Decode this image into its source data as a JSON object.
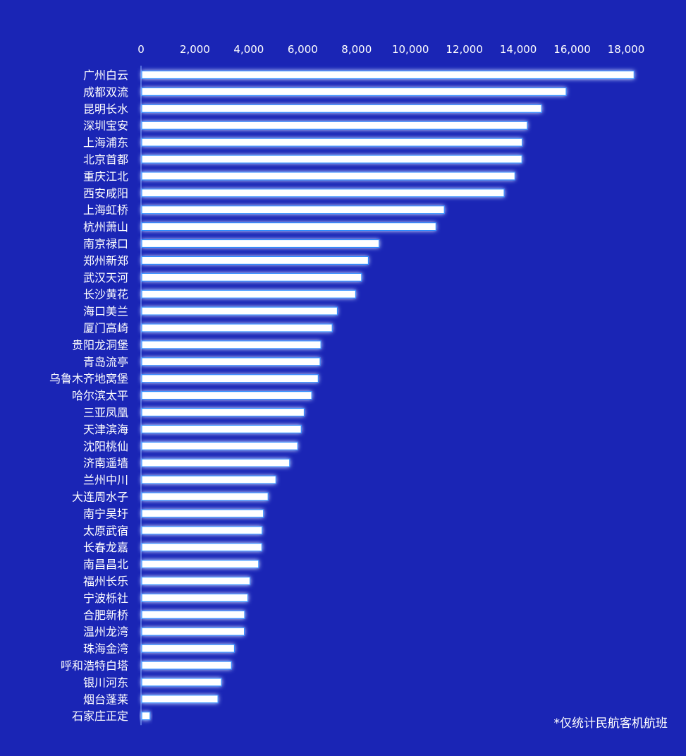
{
  "chart_data": {
    "type": "bar",
    "orientation": "horizontal",
    "title": "",
    "xlabel": "",
    "ylabel": "",
    "xlim": [
      0,
      18000
    ],
    "x_ticks": [
      0,
      2000,
      4000,
      6000,
      8000,
      10000,
      12000,
      14000,
      16000,
      18000
    ],
    "x_tick_labels": [
      "0",
      "2,000",
      "4,000",
      "6,000",
      "8,000",
      "10,000",
      "12,000",
      "14,000",
      "16,000",
      "18,000"
    ],
    "x_axis_position": "top",
    "grid": false,
    "legend": "none",
    "categories": [
      "广州白云",
      "成都双流",
      "昆明长水",
      "深圳宝安",
      "上海浦东",
      "北京首都",
      "重庆江北",
      "西安咸阳",
      "上海虹桥",
      "杭州萧山",
      "南京禄口",
      "郑州新郑",
      "武汉天河",
      "长沙黄花",
      "海口美兰",
      "厦门高崎",
      "贵阳龙洞堡",
      "青岛流亭",
      "乌鲁木齐地窝堡",
      "哈尔滨太平",
      "三亚凤凰",
      "天津滨海",
      "沈阳桃仙",
      "济南遥墙",
      "兰州中川",
      "大连周水子",
      "南宁吴圩",
      "太原武宿",
      "长春龙嘉",
      "南昌昌北",
      "福州长乐",
      "宁波栎社",
      "合肥新桥",
      "温州龙湾",
      "珠海金湾",
      "呼和浩特白塔",
      "银川河东",
      "烟台蓬莱",
      "石家庄正定"
    ],
    "values": [
      18270,
      15750,
      14840,
      14310,
      14120,
      14110,
      13850,
      13450,
      11230,
      10920,
      8810,
      8410,
      8160,
      7940,
      7260,
      7070,
      6650,
      6620,
      6550,
      6310,
      6030,
      5920,
      5790,
      5490,
      4980,
      4690,
      4520,
      4470,
      4460,
      4340,
      4020,
      3940,
      3820,
      3810,
      3440,
      3330,
      2960,
      2830,
      310
    ],
    "bar_color": "#ffffff",
    "glow_color": "#2e8bff"
  },
  "footnote": "*仅统计民航客机航班",
  "colors": {
    "background": "#1a25b5",
    "text": "#ffffff",
    "axis_line": "#8fb4ff"
  }
}
